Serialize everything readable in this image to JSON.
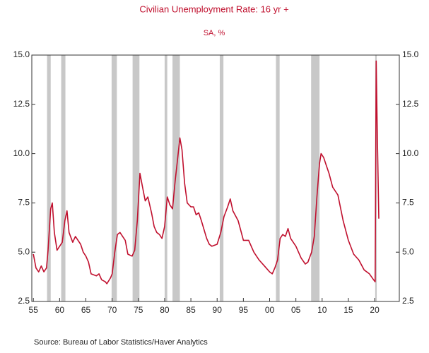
{
  "chart_data": {
    "type": "line",
    "title": "Civilian Unemployment Rate: 16 yr +",
    "subtitle": "SA, %",
    "source": "Source:  Bureau of Labor Statistics/Haver Analytics",
    "xlim": [
      1954.7,
      2024.7
    ],
    "ylim": [
      2.5,
      15
    ],
    "xticks": [
      {
        "value": 1955,
        "label": "55"
      },
      {
        "value": 1960,
        "label": "60"
      },
      {
        "value": 1965,
        "label": "65"
      },
      {
        "value": 1970,
        "label": "70"
      },
      {
        "value": 1975,
        "label": "75"
      },
      {
        "value": 1980,
        "label": "80"
      },
      {
        "value": 1985,
        "label": "85"
      },
      {
        "value": 1990,
        "label": "90"
      },
      {
        "value": 1995,
        "label": "95"
      },
      {
        "value": 2000,
        "label": "00"
      },
      {
        "value": 2005,
        "label": "05"
      },
      {
        "value": 2010,
        "label": "10"
      },
      {
        "value": 2015,
        "label": "15"
      },
      {
        "value": 2020,
        "label": "20"
      }
    ],
    "yticks": [
      2.5,
      {
        "value": 5,
        "label": "5.0"
      },
      7.5,
      {
        "value": 10,
        "label": "10.0"
      },
      12.5,
      {
        "value": 15,
        "label": "15.0"
      }
    ],
    "recession_color": "#c8c8c8",
    "recessions": [
      [
        1957.6,
        1958.3
      ],
      [
        1960.3,
        1961.1
      ],
      [
        1969.9,
        1970.9
      ],
      [
        1973.9,
        1975.2
      ],
      [
        1980.0,
        1980.5
      ],
      [
        1981.5,
        1982.9
      ],
      [
        1990.5,
        1991.2
      ],
      [
        2001.2,
        2001.9
      ],
      [
        2007.9,
        2009.5
      ],
      [
        2020.1,
        2020.4
      ]
    ],
    "series": [
      {
        "color": "#c0102e",
        "x": [
          1955.0,
          1955.5,
          1956.0,
          1956.5,
          1957.0,
          1957.5,
          1957.8,
          1958.3,
          1958.6,
          1959.0,
          1959.5,
          1960.0,
          1960.5,
          1961.0,
          1961.4,
          1961.8,
          1962.5,
          1963.0,
          1963.5,
          1964.0,
          1964.5,
          1965.0,
          1965.5,
          1966.0,
          1967.0,
          1967.5,
          1968.0,
          1968.7,
          1969.0,
          1969.7,
          1970.0,
          1970.5,
          1971.0,
          1971.5,
          1972.0,
          1972.5,
          1973.0,
          1973.8,
          1974.3,
          1974.8,
          1975.3,
          1975.8,
          1976.3,
          1976.8,
          1977.5,
          1978.0,
          1978.5,
          1979.0,
          1979.5,
          1980.0,
          1980.5,
          1981.0,
          1981.5,
          1982.0,
          1982.5,
          1982.9,
          1983.3,
          1983.8,
          1984.3,
          1985.0,
          1985.5,
          1986.0,
          1986.5,
          1987.0,
          1988.0,
          1988.5,
          1989.0,
          1990.0,
          1990.7,
          1991.3,
          1992.0,
          1992.5,
          1993.0,
          1994.0,
          1994.5,
          1995.0,
          1996.0,
          1997.0,
          1998.0,
          1999.0,
          2000.0,
          2000.5,
          2001.0,
          2001.5,
          2002.0,
          2002.5,
          2003.0,
          2003.5,
          2004.0,
          2005.0,
          2006.0,
          2006.8,
          2007.3,
          2008.0,
          2008.5,
          2009.0,
          2009.5,
          2009.8,
          2010.3,
          2010.8,
          2011.3,
          2012.0,
          2013.0,
          2014.0,
          2015.0,
          2016.0,
          2017.0,
          2018.0,
          2019.0,
          2019.8,
          2020.1,
          2020.3,
          2020.5,
          2020.8
        ],
        "values": [
          4.9,
          4.2,
          4.0,
          4.3,
          4.0,
          4.2,
          5.1,
          7.2,
          7.5,
          6.0,
          5.1,
          5.3,
          5.5,
          6.6,
          7.1,
          6.0,
          5.5,
          5.8,
          5.6,
          5.4,
          5.0,
          4.8,
          4.5,
          3.9,
          3.8,
          3.9,
          3.6,
          3.5,
          3.4,
          3.7,
          3.9,
          5.0,
          5.9,
          6.0,
          5.8,
          5.6,
          4.9,
          4.8,
          5.1,
          6.6,
          9.0,
          8.3,
          7.6,
          7.8,
          7.0,
          6.3,
          6.0,
          5.9,
          5.7,
          6.3,
          7.8,
          7.4,
          7.2,
          8.6,
          9.8,
          10.8,
          10.2,
          8.5,
          7.5,
          7.3,
          7.3,
          6.9,
          7.0,
          6.6,
          5.7,
          5.4,
          5.3,
          5.4,
          6.0,
          6.8,
          7.3,
          7.7,
          7.1,
          6.6,
          6.1,
          5.6,
          5.6,
          5.0,
          4.6,
          4.3,
          4.0,
          3.9,
          4.2,
          4.6,
          5.7,
          5.9,
          5.8,
          6.2,
          5.7,
          5.3,
          4.7,
          4.4,
          4.5,
          5.0,
          5.8,
          7.8,
          9.5,
          10.0,
          9.8,
          9.4,
          9.0,
          8.3,
          7.9,
          6.6,
          5.6,
          4.9,
          4.6,
          4.1,
          3.9,
          3.6,
          3.5,
          14.7,
          11.1,
          6.7
        ]
      }
    ]
  }
}
